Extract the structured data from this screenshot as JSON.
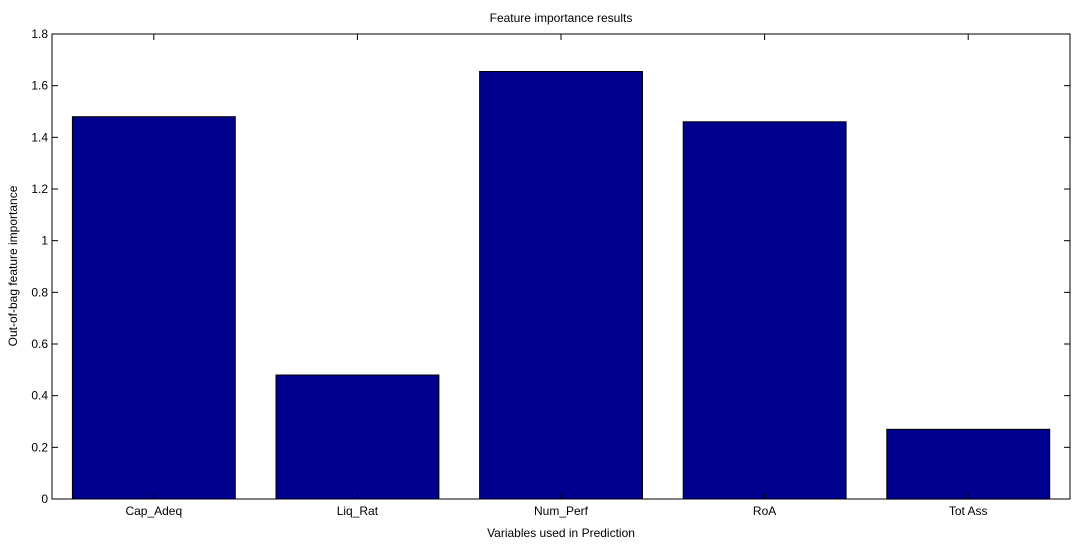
{
  "chart_data": {
    "type": "bar",
    "title": "Feature importance results",
    "xlabel": "Variables used in Prediction",
    "ylabel": "Out-of-bag feature importance",
    "categories": [
      "Cap_Adeq",
      "Liq_Rat",
      "Num_Perf",
      "RoA",
      "Tot Ass"
    ],
    "values": [
      1.48,
      0.48,
      1.655,
      1.46,
      0.27
    ],
    "ylim": [
      0,
      1.8
    ],
    "yticks": [
      "0",
      "0.2",
      "0.4",
      "0.6",
      "0.8",
      "1",
      "1.2",
      "1.4",
      "1.6",
      "1.8"
    ],
    "grid": false,
    "legend": "none",
    "bar_color": "#00008f",
    "bar_edge_color": "#000000"
  }
}
